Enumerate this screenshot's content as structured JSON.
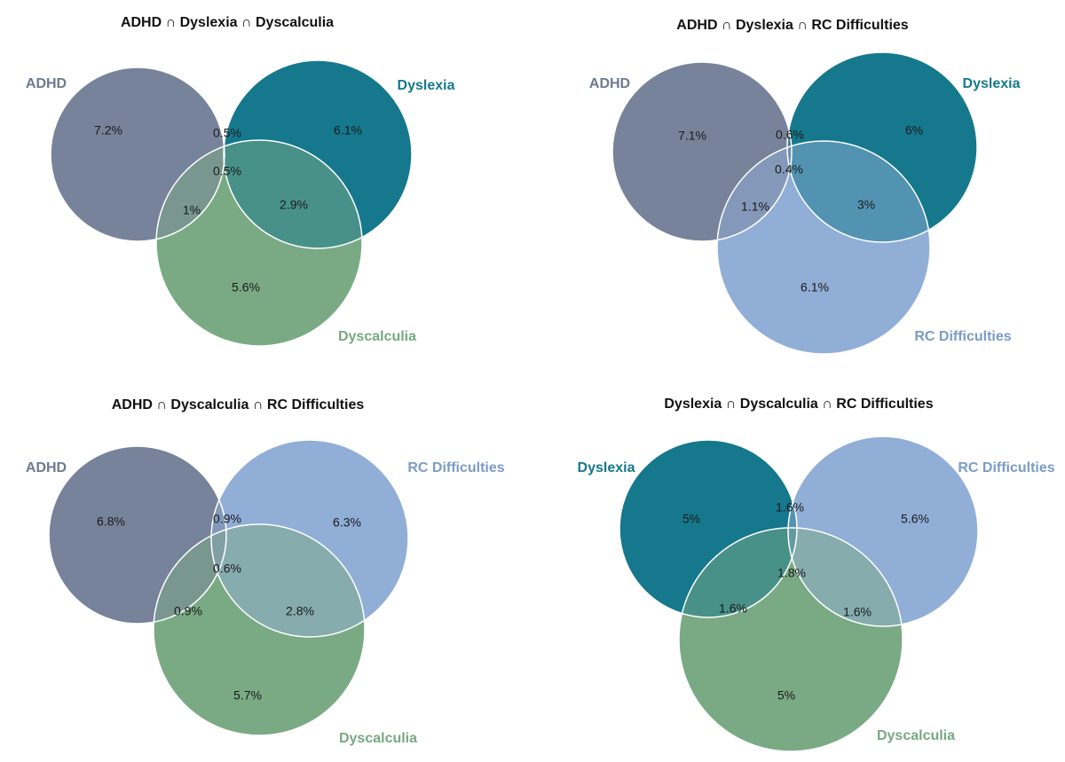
{
  "chart_data": [
    {
      "type": "venn",
      "title": "ADHD ∩ Dyslexia ∩ Dyscalculia",
      "sets": [
        {
          "name": "ADHD",
          "color": "#77839A",
          "label_color": "#6C7A91"
        },
        {
          "name": "Dyslexia",
          "color": "#15788D",
          "label_color": "#15788D"
        },
        {
          "name": "Dyscalculia",
          "color": "#7AAA84",
          "label_color": "#78A882"
        }
      ],
      "regions": {
        "A": "7.2%",
        "B": "6.1%",
        "C": "5.6%",
        "AB": "0.5%",
        "AC": "1%",
        "BC": "2.9%",
        "ABC": "0.5%"
      }
    },
    {
      "type": "venn",
      "title": "ADHD ∩ Dyslexia ∩ RC Difficulties",
      "sets": [
        {
          "name": "ADHD",
          "color": "#77839A",
          "label_color": "#6C7A91"
        },
        {
          "name": "Dyslexia",
          "color": "#15788D",
          "label_color": "#15788D"
        },
        {
          "name": "RC Difficulties",
          "color": "#91AED7",
          "label_color": "#7A9CC6"
        }
      ],
      "regions": {
        "A": "7.1%",
        "B": "6%",
        "C": "6.1%",
        "AB": "0.6%",
        "AC": "1.1%",
        "BC": "3%",
        "ABC": "0.4%"
      }
    },
    {
      "type": "venn",
      "title": "ADHD ∩ Dyscalculia ∩ RC Difficulties",
      "sets": [
        {
          "name": "ADHD",
          "color": "#77839A",
          "label_color": "#6C7A91"
        },
        {
          "name": "RC Difficulties",
          "color": "#91AED7",
          "label_color": "#7A9CC6"
        },
        {
          "name": "Dyscalculia",
          "color": "#7AAA84",
          "label_color": "#78A882"
        }
      ],
      "regions": {
        "A": "6.8%",
        "B": "6.3%",
        "C": "5.7%",
        "AB": "0.9%",
        "AC": "0.9%",
        "BC": "2.8%",
        "ABC": "0.6%"
      }
    },
    {
      "type": "venn",
      "title": "Dyslexia ∩ Dyscalculia ∩ RC Difficulties",
      "sets": [
        {
          "name": "Dyslexia",
          "color": "#15788D",
          "label_color": "#15788D"
        },
        {
          "name": "RC Difficulties",
          "color": "#91AED7",
          "label_color": "#7A9CC6"
        },
        {
          "name": "Dyscalculia",
          "color": "#7AAA84",
          "label_color": "#78A882"
        }
      ],
      "regions": {
        "A": "5%",
        "B": "5.6%",
        "C": "5%",
        "AB": "1.6%",
        "AC": "1.6%",
        "BC": "1.6%",
        "ABC": "1.8%"
      }
    }
  ]
}
